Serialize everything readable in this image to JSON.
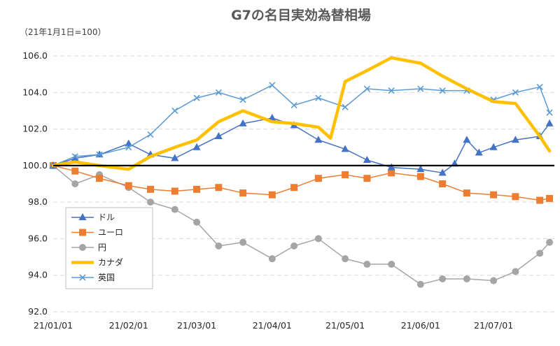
{
  "chart_data": {
    "type": "line",
    "title": "G7の名目実効為替相場",
    "subtitle": "（21年1月1日=100）",
    "xlabel": "",
    "ylabel": "",
    "ylim": [
      92,
      106
    ],
    "yticks": [
      "92.0",
      "94.0",
      "96.0",
      "98.0",
      "100.0",
      "102.0",
      "104.0",
      "106.0"
    ],
    "xticks": [
      {
        "date": "2021-01-01",
        "label": "21/01/01"
      },
      {
        "date": "2021-02-01",
        "label": "21/02/01"
      },
      {
        "date": "2021-03-01",
        "label": "21/03/01"
      },
      {
        "date": "2021-04-01",
        "label": "21/04/01"
      },
      {
        "date": "2021-05-01",
        "label": "21/05/01"
      },
      {
        "date": "2021-06-01",
        "label": "21/06/01"
      },
      {
        "date": "2021-07-01",
        "label": "21/07/01"
      }
    ],
    "baseline": 100,
    "grid": "horizontal dashed",
    "legend_position": "bottom-left",
    "series": [
      {
        "name": "ドル",
        "color": "#4472C4",
        "marker": "triangle",
        "x": [
          "2021-01-01",
          "2021-01-10",
          "2021-01-20",
          "2021-02-01",
          "2021-02-10",
          "2021-02-20",
          "2021-03-01",
          "2021-03-10",
          "2021-03-20",
          "2021-04-01",
          "2021-04-10",
          "2021-04-20",
          "2021-05-01",
          "2021-05-10",
          "2021-05-20",
          "2021-06-01",
          "2021-06-10",
          "2021-06-15",
          "2021-06-20",
          "2021-06-25",
          "2021-07-01",
          "2021-07-10",
          "2021-07-20",
          "2021-07-24"
        ],
        "y": [
          100,
          100.4,
          100.6,
          101.2,
          100.6,
          100.4,
          101.0,
          101.6,
          102.3,
          102.6,
          102.2,
          101.4,
          100.9,
          100.3,
          99.9,
          99.8,
          99.6,
          100.1,
          101.4,
          100.7,
          101.0,
          101.4,
          101.6,
          102.3
        ]
      },
      {
        "name": "ユーロ",
        "color": "#ED7D31",
        "marker": "square",
        "x": [
          "2021-01-01",
          "2021-01-10",
          "2021-01-20",
          "2021-02-01",
          "2021-02-10",
          "2021-02-20",
          "2021-03-01",
          "2021-03-10",
          "2021-03-20",
          "2021-04-01",
          "2021-04-10",
          "2021-04-20",
          "2021-05-01",
          "2021-05-10",
          "2021-05-20",
          "2021-06-01",
          "2021-06-10",
          "2021-06-20",
          "2021-07-01",
          "2021-07-10",
          "2021-07-20",
          "2021-07-24"
        ],
        "y": [
          100,
          99.7,
          99.3,
          98.9,
          98.7,
          98.6,
          98.7,
          98.8,
          98.5,
          98.4,
          98.8,
          99.3,
          99.5,
          99.3,
          99.6,
          99.4,
          99.0,
          98.5,
          98.4,
          98.3,
          98.1,
          98.2
        ]
      },
      {
        "name": "円",
        "color": "#A5A5A5",
        "marker": "circle",
        "x": [
          "2021-01-01",
          "2021-01-10",
          "2021-01-20",
          "2021-02-01",
          "2021-02-10",
          "2021-02-20",
          "2021-03-01",
          "2021-03-10",
          "2021-03-20",
          "2021-04-01",
          "2021-04-10",
          "2021-04-20",
          "2021-05-01",
          "2021-05-10",
          "2021-05-20",
          "2021-06-01",
          "2021-06-10",
          "2021-06-20",
          "2021-07-01",
          "2021-07-10",
          "2021-07-20",
          "2021-07-24"
        ],
        "y": [
          100,
          99.0,
          99.5,
          98.8,
          98.0,
          97.6,
          96.9,
          95.6,
          95.8,
          94.9,
          95.6,
          96.0,
          94.9,
          94.6,
          94.6,
          93.5,
          93.8,
          93.8,
          93.7,
          94.2,
          95.2,
          95.8
        ]
      },
      {
        "name": "カナダ",
        "color": "#FFC000",
        "marker": "none",
        "x": [
          "2021-01-01",
          "2021-01-10",
          "2021-01-20",
          "2021-02-01",
          "2021-02-10",
          "2021-02-20",
          "2021-03-01",
          "2021-03-10",
          "2021-03-20",
          "2021-04-01",
          "2021-04-10",
          "2021-04-20",
          "2021-04-25",
          "2021-05-01",
          "2021-05-10",
          "2021-05-20",
          "2021-06-01",
          "2021-06-10",
          "2021-06-20",
          "2021-07-01",
          "2021-07-10",
          "2021-07-20",
          "2021-07-24"
        ],
        "y": [
          100,
          100.2,
          100.0,
          99.8,
          100.5,
          101.0,
          101.4,
          102.4,
          103.0,
          102.4,
          102.3,
          102.1,
          101.5,
          104.6,
          105.2,
          105.9,
          105.6,
          104.9,
          104.2,
          103.5,
          103.4,
          101.6,
          100.8
        ]
      },
      {
        "name": "英国",
        "color": "#5B9BD5",
        "marker": "cross",
        "x": [
          "2021-01-01",
          "2021-01-10",
          "2021-01-20",
          "2021-02-01",
          "2021-02-10",
          "2021-02-20",
          "2021-03-01",
          "2021-03-10",
          "2021-03-20",
          "2021-04-01",
          "2021-04-10",
          "2021-04-20",
          "2021-05-01",
          "2021-05-10",
          "2021-05-20",
          "2021-06-01",
          "2021-06-10",
          "2021-06-20",
          "2021-07-01",
          "2021-07-10",
          "2021-07-20",
          "2021-07-24"
        ],
        "y": [
          100,
          100.5,
          100.6,
          101.0,
          101.7,
          103.0,
          103.7,
          104.0,
          103.6,
          104.4,
          103.3,
          103.7,
          103.2,
          104.2,
          104.1,
          104.2,
          104.1,
          104.1,
          103.6,
          104.0,
          104.3,
          102.9
        ]
      }
    ]
  }
}
